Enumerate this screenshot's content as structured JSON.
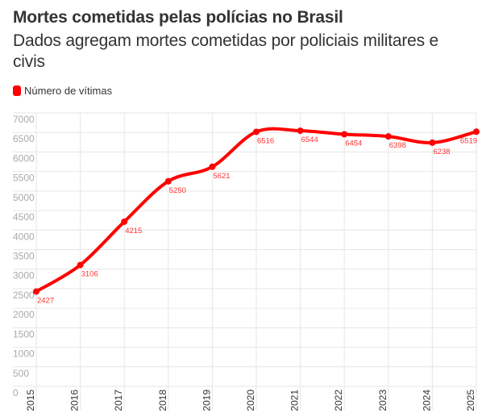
{
  "header": {
    "title": "Mortes cometidas pelas polícias no Brasil",
    "subtitle": "Dados agregam mortes cometidas por policiais militares e civis"
  },
  "colors": {
    "series": "#ff0000",
    "data_label": "#ff3333",
    "grid": "#e6e6e6",
    "axis_text": "#aaaaaa",
    "text": "#333333"
  },
  "chart_data": {
    "type": "line",
    "title": "Mortes cometidas pelas polícias no Brasil",
    "subtitle": "Dados agregam mortes cometidas por policiais militares e civis",
    "xlabel": "",
    "ylabel": "",
    "x": [
      "2015",
      "2016",
      "2017",
      "2018",
      "2019",
      "2020",
      "2021",
      "2022",
      "2023",
      "2024",
      "2025"
    ],
    "series": [
      {
        "name": "Número de vítimas",
        "values": [
          2427,
          3106,
          4215,
          5250,
          5621,
          6516,
          6544,
          6454,
          6398,
          6238,
          6519
        ]
      }
    ],
    "data_labels": [
      "2427",
      "3106",
      "4215",
      "5250",
      "5621",
      "6516",
      "6544",
      "6454",
      "6398",
      "6238",
      "6519"
    ],
    "ylim": [
      0,
      7000
    ],
    "yticks": [
      0,
      500,
      1000,
      1500,
      2000,
      2500,
      3000,
      3500,
      4000,
      4500,
      5000,
      5500,
      6000,
      6500,
      7000
    ],
    "ytick_labels": [
      "0",
      "500",
      "1000",
      "1500",
      "2000",
      "2500",
      "3000",
      "3500",
      "4000",
      "4500",
      "5000",
      "5500",
      "6000",
      "6500",
      "7000"
    ],
    "grid": true,
    "smooth": true,
    "legend": {
      "position": "top-left",
      "entries": [
        "Número de vítimas"
      ]
    }
  }
}
